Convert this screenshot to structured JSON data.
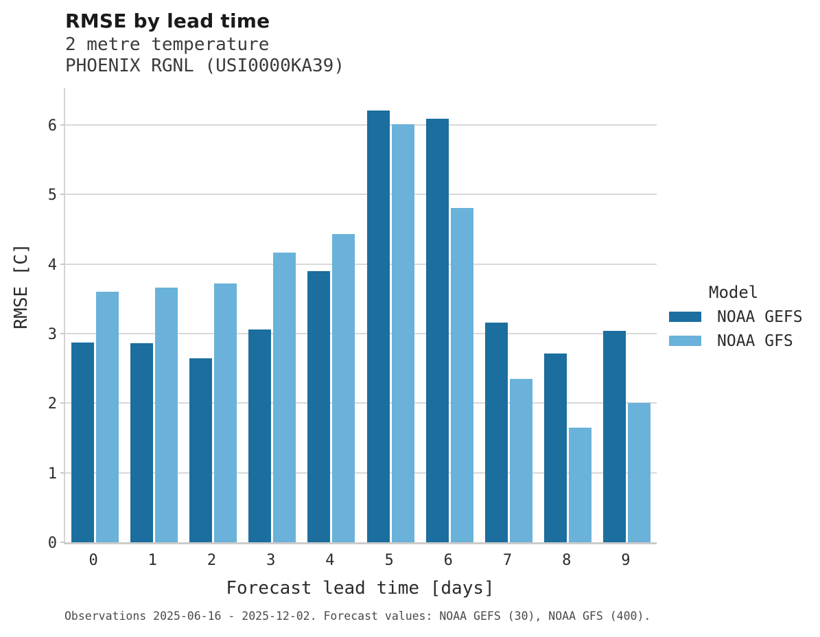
{
  "header": {
    "title": "RMSE by lead time",
    "subtitle_line1": "2 metre temperature",
    "subtitle_line2": "PHOENIX RGNL (USI0000KA39)"
  },
  "chart_data": {
    "type": "bar",
    "grouped": true,
    "title": "RMSE by lead time",
    "xlabel": "Forecast lead time [days]",
    "ylabel": "RMSE [C]",
    "categories": [
      "0",
      "1",
      "2",
      "3",
      "4",
      "5",
      "6",
      "7",
      "8",
      "9"
    ],
    "yticks": [
      0,
      1,
      2,
      3,
      4,
      5,
      6
    ],
    "ylim": [
      0,
      6.53
    ],
    "grid": "horizontal",
    "legend_position": "right-outside",
    "series": [
      {
        "name": "NOAA GEFS",
        "color": "#1b6e9e",
        "values": [
          2.87,
          2.86,
          2.64,
          3.06,
          3.9,
          6.2,
          6.09,
          3.16,
          2.71,
          3.04
        ]
      },
      {
        "name": "NOAA GFS",
        "color": "#6ab2d9",
        "values": [
          3.6,
          3.66,
          3.72,
          4.16,
          4.43,
          6.01,
          4.8,
          2.35,
          1.65,
          2.0
        ]
      }
    ]
  },
  "legend": {
    "title": "Model",
    "entries": [
      {
        "label": "NOAA GEFS",
        "color": "#1b6e9e"
      },
      {
        "label": "NOAA GFS",
        "color": "#6ab2d9"
      }
    ]
  },
  "footer": {
    "text": "Observations 2025-06-16 - 2025-12-02. Forecast values: NOAA GEFS (30), NOAA GFS (400)."
  }
}
